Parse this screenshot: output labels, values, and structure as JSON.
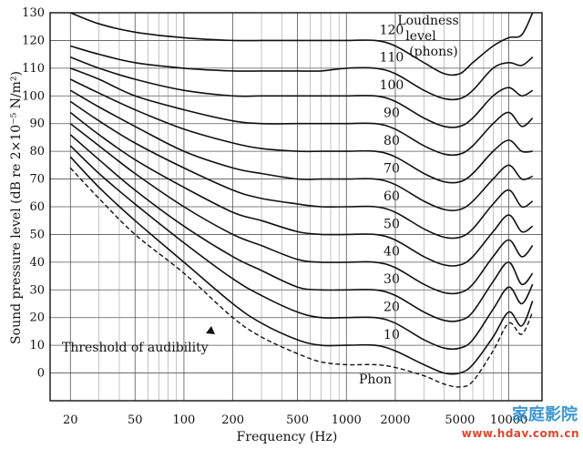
{
  "chart_data": {
    "type": "line",
    "title": "",
    "xlabel": "Frequency (Hz)",
    "ylabel": "Sound pressure level (dB re 2×10⁻⁵ N/m²)",
    "x_scale": "log",
    "xlim": [
      15,
      16000
    ],
    "ylim": [
      -10,
      130
    ],
    "grid": true,
    "x_ticks": [
      20,
      50,
      100,
      200,
      500,
      1000,
      2000,
      5000,
      10000
    ],
    "x_tick_labels": [
      "20",
      "50",
      "100",
      "200",
      "500",
      "1000",
      "2000",
      "5000",
      "10000"
    ],
    "y_ticks": [
      0,
      10,
      20,
      30,
      40,
      50,
      60,
      70,
      80,
      90,
      100,
      110,
      120,
      130
    ],
    "legend_title": "Loudness level (phons)",
    "legend_title_lines": [
      "Loudness",
      "level",
      "(phons)"
    ],
    "series": [
      {
        "name": "Threshold of audibility",
        "style": "dashed",
        "x": [
          20,
          30,
          50,
          100,
          200,
          300,
          500,
          700,
          1000,
          1500,
          2000,
          3000,
          4000,
          5000,
          6000,
          8000,
          10000,
          12000,
          14000
        ],
        "values": [
          74,
          63,
          50,
          36,
          20,
          13,
          7,
          4,
          3,
          3,
          2,
          -1,
          -4,
          -5,
          -3,
          8,
          18,
          14,
          22
        ]
      },
      {
        "name": "10",
        "x": [
          20,
          30,
          50,
          100,
          200,
          300,
          500,
          700,
          1000,
          1500,
          2000,
          3000,
          4000,
          5000,
          6000,
          8000,
          10000,
          12000,
          14000
        ],
        "values": [
          78,
          67,
          55,
          40,
          25,
          18,
          12,
          10,
          10,
          10,
          8,
          3,
          0,
          0,
          3,
          13,
          22,
          17,
          26
        ]
      },
      {
        "name": "20",
        "x": [
          20,
          30,
          50,
          100,
          200,
          300,
          500,
          700,
          1000,
          1500,
          2000,
          3000,
          4000,
          5000,
          6000,
          8000,
          10000,
          12000,
          14000
        ],
        "values": [
          82,
          72,
          61,
          47,
          34,
          28,
          22,
          20,
          20,
          20,
          18,
          12,
          9,
          9,
          12,
          23,
          31,
          25,
          32
        ]
      },
      {
        "name": "30",
        "x": [
          20,
          30,
          50,
          100,
          200,
          300,
          500,
          700,
          1000,
          1500,
          2000,
          3000,
          4000,
          5000,
          6000,
          8000,
          10000,
          12000,
          14000
        ],
        "values": [
          86,
          77,
          66,
          53,
          42,
          37,
          31,
          30,
          30,
          30,
          28,
          22,
          19,
          19,
          22,
          33,
          40,
          32,
          36
        ]
      },
      {
        "name": "40",
        "x": [
          20,
          30,
          50,
          100,
          200,
          300,
          500,
          700,
          1000,
          1500,
          2000,
          3000,
          4000,
          5000,
          6000,
          8000,
          10000,
          12000,
          14000
        ],
        "values": [
          90,
          82,
          72,
          60,
          50,
          46,
          41,
          40,
          40,
          40,
          38,
          32,
          29,
          29,
          32,
          42,
          48,
          42,
          46
        ]
      },
      {
        "name": "50",
        "x": [
          20,
          30,
          50,
          100,
          200,
          300,
          500,
          700,
          1000,
          1500,
          2000,
          3000,
          4000,
          5000,
          6000,
          8000,
          10000,
          12000,
          14000
        ],
        "values": [
          94,
          86,
          77,
          67,
          58,
          55,
          51,
          50,
          50,
          50,
          48,
          42,
          39,
          39,
          42,
          51,
          57,
          51,
          53
        ]
      },
      {
        "name": "60",
        "x": [
          20,
          30,
          50,
          100,
          200,
          300,
          500,
          700,
          1000,
          1500,
          2000,
          3000,
          4000,
          5000,
          6000,
          8000,
          10000,
          12000,
          14000
        ],
        "values": [
          98,
          91,
          83,
          74,
          66,
          63,
          61,
          60,
          60,
          60,
          58,
          52,
          49,
          49,
          52,
          61,
          66,
          60,
          62
        ]
      },
      {
        "name": "70",
        "x": [
          20,
          30,
          50,
          100,
          200,
          300,
          500,
          700,
          1000,
          1500,
          2000,
          3000,
          4000,
          5000,
          6000,
          8000,
          10000,
          12000,
          14000
        ],
        "values": [
          102,
          96,
          89,
          80,
          74,
          72,
          70,
          70,
          70,
          70,
          68,
          62,
          59,
          59,
          62,
          70,
          75,
          70,
          71
        ]
      },
      {
        "name": "80",
        "x": [
          20,
          30,
          50,
          100,
          200,
          300,
          500,
          700,
          1000,
          1500,
          2000,
          3000,
          4000,
          5000,
          6000,
          8000,
          10000,
          12000,
          14000
        ],
        "values": [
          106,
          101,
          95,
          88,
          83,
          81,
          80,
          80,
          80,
          80,
          78,
          72,
          69,
          69,
          72,
          80,
          84,
          80,
          80
        ]
      },
      {
        "name": "90",
        "x": [
          20,
          30,
          50,
          100,
          200,
          300,
          500,
          700,
          1000,
          1500,
          2000,
          3000,
          4000,
          5000,
          6000,
          8000,
          10000,
          12000,
          14000
        ],
        "values": [
          110,
          106,
          100,
          95,
          91,
          90,
          90,
          90,
          90,
          90,
          88,
          82,
          79,
          79,
          82,
          90,
          94,
          89,
          92
        ]
      },
      {
        "name": "100",
        "x": [
          20,
          30,
          50,
          100,
          200,
          300,
          500,
          700,
          1000,
          1500,
          2000,
          3000,
          4000,
          5000,
          6000,
          8000,
          10000,
          12000,
          14000
        ],
        "values": [
          114,
          110,
          106,
          102,
          100,
          100,
          100,
          100,
          100,
          100,
          98,
          92,
          89,
          89,
          92,
          100,
          103,
          100,
          102
        ]
      },
      {
        "name": "110",
        "x": [
          20,
          30,
          50,
          100,
          200,
          300,
          500,
          700,
          1000,
          1500,
          2000,
          3000,
          4000,
          5000,
          6000,
          8000,
          10000,
          12000,
          14000
        ],
        "values": [
          118,
          115,
          112,
          110,
          109,
          109,
          109,
          109,
          110,
          110,
          108,
          102,
          99,
          99,
          102,
          110,
          112,
          111,
          114
        ]
      },
      {
        "name": "120",
        "x": [
          20,
          30,
          50,
          100,
          200,
          300,
          500,
          700,
          1000,
          1500,
          2000,
          3000,
          4000,
          5000,
          6000,
          8000,
          10000,
          12000,
          14000
        ],
        "values": [
          130,
          126,
          123,
          121,
          120,
          120,
          120,
          120,
          120,
          120,
          118,
          112,
          108,
          108,
          112,
          118,
          121,
          122,
          130
        ]
      }
    ],
    "annotations": {
      "threshold_label": "Threshold of audibility",
      "phon_label": "Phon"
    }
  },
  "watermark": {
    "logo_text": "家庭影院",
    "url": "www.hdav.com.cn"
  }
}
